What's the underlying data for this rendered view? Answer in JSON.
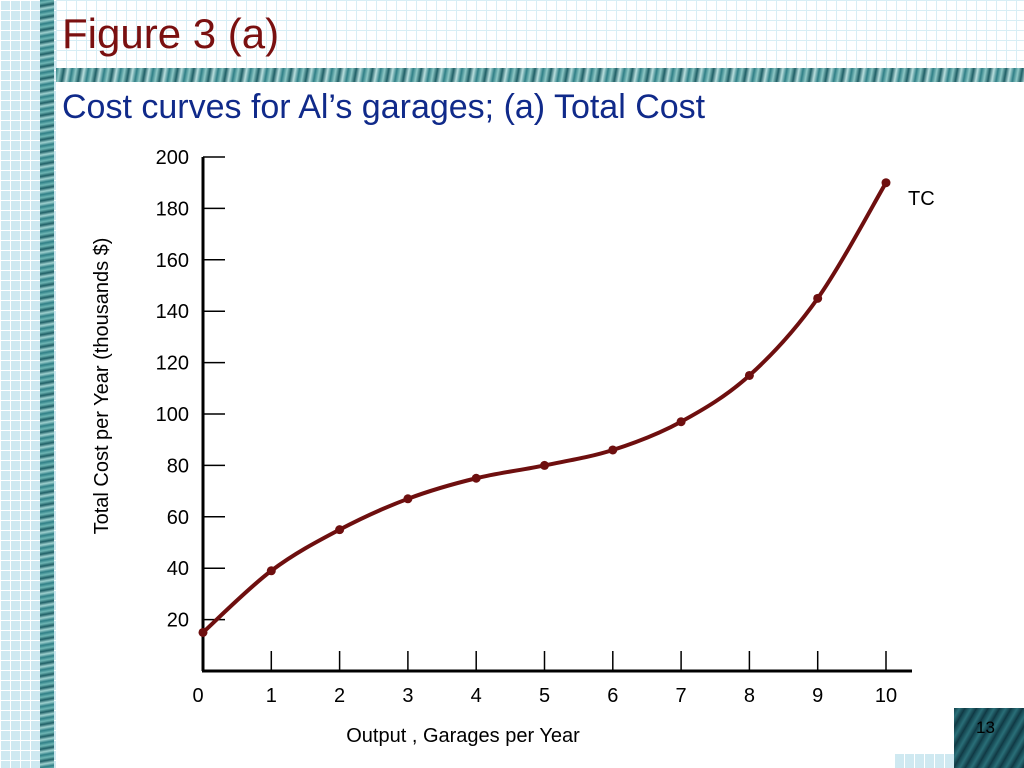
{
  "slide": {
    "title": "Figure 3 (a)",
    "subtitle": "Cost curves for Al’s garages; (a) Total Cost",
    "page_number": "13"
  },
  "colors": {
    "title": "#7a1010",
    "subtitle": "#102a8a",
    "curve": "#6e0f0f",
    "axis": "#000000"
  },
  "chart_data": {
    "type": "line",
    "title": "",
    "xlabel": "Output , Garages per Year",
    "ylabel": "Total Cost per Year (thousands $)",
    "xlim": [
      0,
      10
    ],
    "ylim": [
      0,
      200
    ],
    "x_ticks": [
      0,
      1,
      2,
      3,
      4,
      5,
      6,
      7,
      8,
      9,
      10
    ],
    "y_ticks": [
      20,
      40,
      60,
      80,
      100,
      120,
      140,
      160,
      180,
      200
    ],
    "grid": false,
    "series": [
      {
        "name": "TC",
        "x": [
          0,
          1,
          2,
          3,
          4,
          5,
          6,
          7,
          8,
          9,
          10
        ],
        "y": [
          15,
          39,
          55,
          67,
          75,
          80,
          86,
          97,
          115,
          145,
          190
        ]
      }
    ]
  }
}
